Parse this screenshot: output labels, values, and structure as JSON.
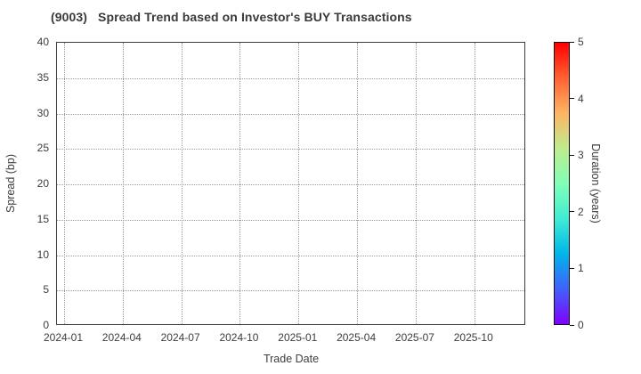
{
  "chart_data": {
    "type": "scatter",
    "title": "(9003)   Spread Trend based on Investor's BUY Transactions",
    "xlabel": "Trade Date",
    "ylabel": "Spread (bp)",
    "x_tick_labels": [
      "2024-01",
      "2024-04",
      "2024-07",
      "2024-10",
      "2025-01",
      "2025-04",
      "2025-07",
      "2025-10"
    ],
    "y_ticks": [
      0,
      5,
      10,
      15,
      20,
      25,
      30,
      35,
      40
    ],
    "ylim": [
      0,
      40
    ],
    "grid": true,
    "grid_style": "dotted",
    "legend": "none",
    "points": [],
    "note": "plot area is empty - no data points rendered",
    "colorbar": {
      "label": "Duration (years)",
      "min": 0,
      "max": 5,
      "ticks": [
        0,
        1,
        2,
        3,
        4,
        5
      ],
      "colormap": "rainbow",
      "gradient_stops": [
        {
          "pos": 0,
          "color": "#8000ff"
        },
        {
          "pos": 12.5,
          "color": "#4161fa"
        },
        {
          "pos": 25,
          "color": "#00b5eb"
        },
        {
          "pos": 37.5,
          "color": "#41ecd4"
        },
        {
          "pos": 50,
          "color": "#80ffb5"
        },
        {
          "pos": 62.5,
          "color": "#bfec8e"
        },
        {
          "pos": 75,
          "color": "#ffb462"
        },
        {
          "pos": 87.5,
          "color": "#ff6232"
        },
        {
          "pos": 100,
          "color": "#ff0000"
        }
      ]
    },
    "colors": {
      "background": "#ffffff",
      "frame": "#3d3d3d",
      "gridline": "#999999",
      "text": "#3c3c3c",
      "title_text": "#3a3a3a"
    }
  }
}
